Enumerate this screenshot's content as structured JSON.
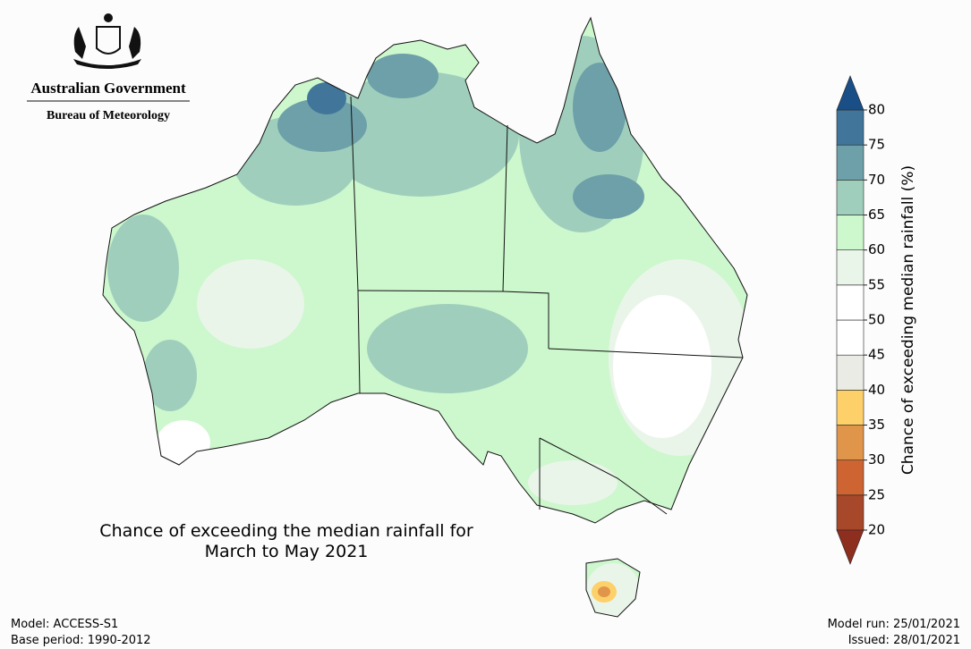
{
  "header": {
    "agency": "Australian Government",
    "bureau": "Bureau of Meteorology"
  },
  "title": {
    "line1": "Chance of exceeding the median rainfall for",
    "line2": "March to May 2021"
  },
  "footer": {
    "model": "Model: ACCESS-S1",
    "base_period": "Base period: 1990-2012",
    "model_run": "Model run: 25/01/2021",
    "issued": "Issued: 28/01/2021"
  },
  "colorbar": {
    "label": "Chance of exceeding median rainfall (%)",
    "ticks": [
      20,
      25,
      30,
      35,
      40,
      45,
      50,
      55,
      60,
      65,
      70,
      75,
      80
    ],
    "colors": [
      "#a8482a",
      "#cd6432",
      "#e0964a",
      "#fdd06a",
      "#ebebe6",
      "#ffffff",
      "#ffffff",
      "#eaf5ea",
      "#cdf7cd",
      "#9fcfbc",
      "#6da0a8",
      "#41769a"
    ],
    "under_color": "#8e2e1e",
    "over_color": "#1a4e86"
  }
}
